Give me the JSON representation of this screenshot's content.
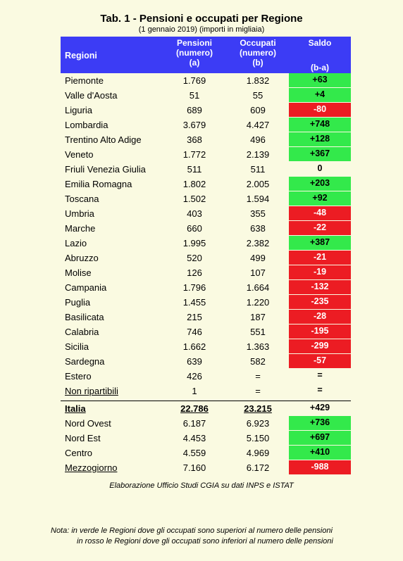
{
  "title": "Tab. 1 - Pensioni e occupati per Regione",
  "subtitle": "(1 gennaio 2019) (importi in migliaia)",
  "header": {
    "region": "Regioni",
    "col_a": [
      "Pensioni",
      "(numero)",
      "(a)"
    ],
    "col_b": [
      "Occupati",
      "(numero)",
      "(b)"
    ],
    "saldo": "Saldo",
    "saldo_formula": "(b-a)"
  },
  "rows": [
    {
      "region": "Piemonte",
      "pensioni": "1.769",
      "occupati": "1.832",
      "saldo": "+63",
      "status": "pos"
    },
    {
      "region": "Valle d'Aosta",
      "pensioni": "51",
      "occupati": "55",
      "saldo": "+4",
      "status": "pos"
    },
    {
      "region": "Liguria",
      "pensioni": "689",
      "occupati": "609",
      "saldo": "-80",
      "status": "neg"
    },
    {
      "region": "Lombardia",
      "pensioni": "3.679",
      "occupati": "4.427",
      "saldo": "+748",
      "status": "pos"
    },
    {
      "region": "Trentino Alto Adige",
      "pensioni": "368",
      "occupati": "496",
      "saldo": "+128",
      "status": "pos"
    },
    {
      "region": "Veneto",
      "pensioni": "1.772",
      "occupati": "2.139",
      "saldo": "+367",
      "status": "pos"
    },
    {
      "region": "Friuli Venezia Giulia",
      "pensioni": "511",
      "occupati": "511",
      "saldo": "0",
      "status": "neu"
    },
    {
      "region": "Emilia Romagna",
      "pensioni": "1.802",
      "occupati": "2.005",
      "saldo": "+203",
      "status": "pos"
    },
    {
      "region": "Toscana",
      "pensioni": "1.502",
      "occupati": "1.594",
      "saldo": "+92",
      "status": "pos"
    },
    {
      "region": "Umbria",
      "pensioni": "403",
      "occupati": "355",
      "saldo": "-48",
      "status": "neg"
    },
    {
      "region": "Marche",
      "pensioni": "660",
      "occupati": "638",
      "saldo": "-22",
      "status": "neg"
    },
    {
      "region": "Lazio",
      "pensioni": "1.995",
      "occupati": "2.382",
      "saldo": "+387",
      "status": "pos"
    },
    {
      "region": "Abruzzo",
      "pensioni": "520",
      "occupati": "499",
      "saldo": "-21",
      "status": "neg"
    },
    {
      "region": "Molise",
      "pensioni": "126",
      "occupati": "107",
      "saldo": "-19",
      "status": "neg"
    },
    {
      "region": "Campania",
      "pensioni": "1.796",
      "occupati": "1.664",
      "saldo": "-132",
      "status": "neg"
    },
    {
      "region": "Puglia",
      "pensioni": "1.455",
      "occupati": "1.220",
      "saldo": "-235",
      "status": "neg"
    },
    {
      "region": "Basilicata",
      "pensioni": "215",
      "occupati": "187",
      "saldo": "-28",
      "status": "neg"
    },
    {
      "region": "Calabria",
      "pensioni": "746",
      "occupati": "551",
      "saldo": "-195",
      "status": "neg"
    },
    {
      "region": "Sicilia",
      "pensioni": "1.662",
      "occupati": "1.363",
      "saldo": "-299",
      "status": "neg"
    },
    {
      "region": "Sardegna",
      "pensioni": "639",
      "occupati": "582",
      "saldo": "-57",
      "status": "neg"
    },
    {
      "region": "Estero",
      "pensioni": "426",
      "occupati": "=",
      "saldo": "=",
      "status": "neu"
    },
    {
      "region": "Non ripartibili",
      "pensioni": "1",
      "occupati": "=",
      "saldo": "=",
      "status": "neu",
      "underline": true
    }
  ],
  "total": {
    "region": "Italia",
    "pensioni": "22.786",
    "occupati": "23.215",
    "saldo": "+429",
    "status": "neu"
  },
  "areas": [
    {
      "region": "Nord Ovest",
      "pensioni": "6.187",
      "occupati": "6.923",
      "saldo": "+736",
      "status": "pos"
    },
    {
      "region": "Nord Est",
      "pensioni": "4.453",
      "occupati": "5.150",
      "saldo": "+697",
      "status": "pos"
    },
    {
      "region": "Centro",
      "pensioni": "4.559",
      "occupati": "4.969",
      "saldo": "+410",
      "status": "pos"
    },
    {
      "region": "Mezzogiorno",
      "pensioni": "7.160",
      "occupati": "6.172",
      "saldo": "-988",
      "status": "neg",
      "underline": true
    }
  ],
  "source": "Elaborazione Ufficio Studi CGIA su dati INPS  e ISTAT",
  "note": {
    "line1": "Nota: in verde le Regioni dove gli occupati sono superiori al numero delle pensioni",
    "line2": "in rosso le Regioni dove gli occupati sono inferiori al numero delle pensioni"
  },
  "colors": {
    "header_bg": "#3c3cf5",
    "positive": "#33e94b",
    "negative": "#ec1c23",
    "page_bg": "#fafae1"
  }
}
